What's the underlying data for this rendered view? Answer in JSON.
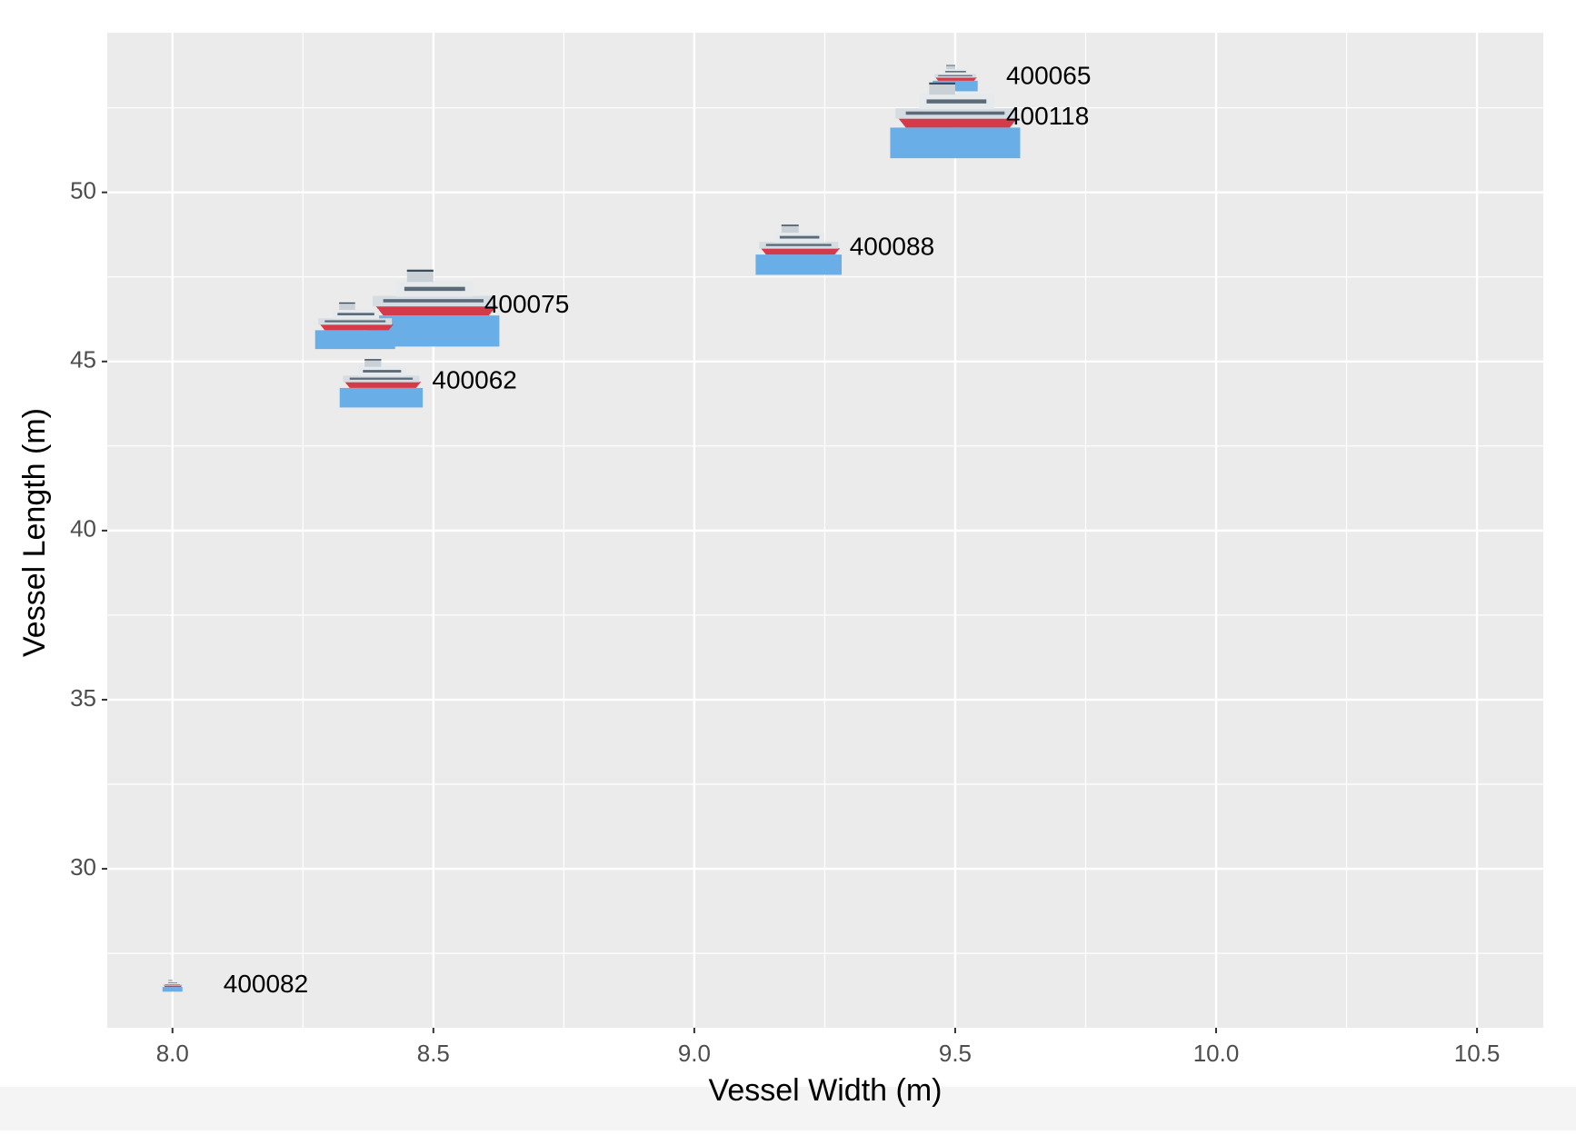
{
  "chart_data": {
    "type": "scatter",
    "x_label": "Vessel Width (m)",
    "y_label": "Vessel Length (m)",
    "x": [
      9.5,
      9.5,
      9.2,
      8.5,
      8.35,
      8.4,
      8.0
    ],
    "y": [
      53.4,
      52.2,
      48.35,
      46.65,
      46.1,
      44.4,
      26.55
    ],
    "sizes": [
      4.5,
      13,
      8.6,
      13.2,
      8,
      8.3,
      2
    ],
    "labels": [
      "400065",
      "400118",
      "400088",
      "400075",
      null,
      "400062",
      "400082"
    ],
    "xlim": [
      7.875,
      10.627
    ],
    "ylim": [
      25.3,
      54.72
    ],
    "xticks": [
      {
        "value": 8,
        "label": "8.0"
      },
      {
        "value": 8.5,
        "label": "8.5"
      },
      {
        "value": 9,
        "label": "9.0"
      },
      {
        "value": 9.5,
        "label": "9.5"
      },
      {
        "value": 10,
        "label": "10.0"
      },
      {
        "value": 10.5,
        "label": "10.5"
      }
    ],
    "yticks": [
      30,
      35,
      40,
      45,
      50
    ],
    "grid": true,
    "panel_color": "#ebebeb",
    "color": "#6aaee8"
  }
}
